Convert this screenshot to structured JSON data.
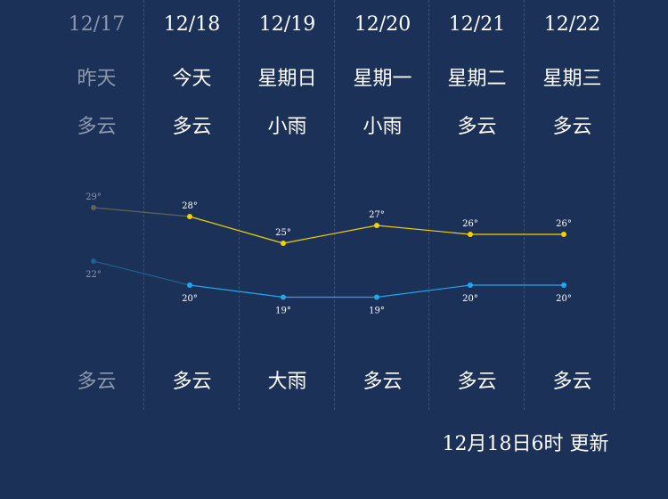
{
  "forecast": {
    "days": [
      {
        "date": "12/17",
        "day_name": "昨天",
        "day_weather": "多云",
        "night_weather": "多云",
        "high": 29,
        "low": 22,
        "high_label": "29°",
        "low_label": "22°",
        "is_past": true
      },
      {
        "date": "12/18",
        "day_name": "今天",
        "day_weather": "多云",
        "night_weather": "多云",
        "high": 28,
        "low": 20,
        "high_label": "28°",
        "low_label": "20°",
        "is_past": false
      },
      {
        "date": "12/19",
        "day_name": "星期日",
        "day_weather": "小雨",
        "night_weather": "大雨",
        "high": 25,
        "low": 19,
        "high_label": "25°",
        "low_label": "19°",
        "is_past": false
      },
      {
        "date": "12/20",
        "day_name": "星期一",
        "day_weather": "小雨",
        "night_weather": "多云",
        "high": 27,
        "low": 19,
        "high_label": "27°",
        "low_label": "19°",
        "is_past": false
      },
      {
        "date": "12/21",
        "day_name": "星期二",
        "day_weather": "多云",
        "night_weather": "多云",
        "high": 26,
        "low": 20,
        "high_label": "26°",
        "low_label": "20°",
        "is_past": false
      },
      {
        "date": "12/22",
        "day_name": "星期三",
        "day_weather": "多云",
        "night_weather": "多云",
        "high": 26,
        "low": 20,
        "high_label": "26°",
        "low_label": "20°",
        "is_past": false
      }
    ]
  },
  "footer": {
    "update_text": "12月18日6时 更新"
  },
  "colors": {
    "background": "#1c3158",
    "high_line": "#f5d000",
    "low_line": "#1fa8f0",
    "past_high_line": "#5e6651",
    "past_low_line": "#1f5f8e",
    "past_text": "#8c98ad"
  }
}
